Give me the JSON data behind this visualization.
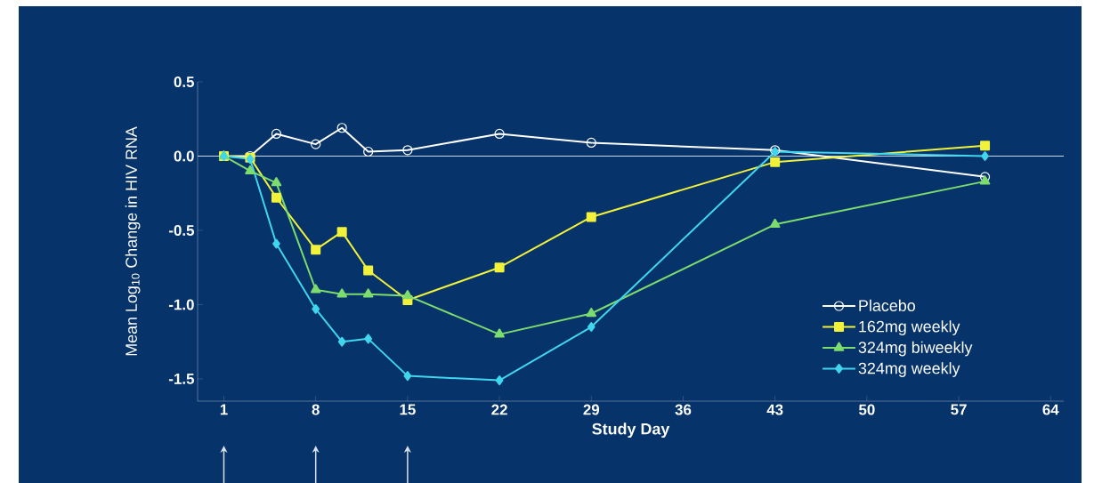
{
  "chart_data": {
    "type": "line",
    "xlabel": "Study Day",
    "ylabel": "Mean Log$_{10}$ Change in HIV RNA",
    "xlim": [
      -1,
      65
    ],
    "xticks": [
      1,
      8,
      15,
      22,
      29,
      36,
      43,
      50,
      57,
      64
    ],
    "ylim": [
      -1.65,
      0.5
    ],
    "yticks": [
      {
        "value": 0.5,
        "label": "0.5"
      },
      {
        "value": 0,
        "label": "0.0"
      },
      {
        "value": -0.5,
        "label": "-0.5"
      },
      {
        "value": -1,
        "label": "-1.0"
      },
      {
        "value": -1.5,
        "label": "-1.5"
      }
    ],
    "x": [
      1,
      3,
      5,
      8,
      10,
      12,
      15,
      22,
      29,
      43,
      59
    ],
    "series": [
      {
        "name": "Placebo",
        "color": "#ffffff",
        "marker": "circle",
        "values": [
          0,
          0,
          0.15,
          0.08,
          0.19,
          0.03,
          0.04,
          0.15,
          0.09,
          0.04,
          -0.14
        ]
      },
      {
        "name": "162mg weekly",
        "color": "#f2f23a",
        "marker": "square",
        "values": [
          0,
          -0.01,
          -0.28,
          -0.63,
          -0.51,
          -0.77,
          -0.97,
          -0.75,
          -0.41,
          -0.04,
          0.07
        ]
      },
      {
        "name": "324mg biweekly",
        "color": "#7ddc6e",
        "marker": "triangle",
        "values": [
          0,
          -0.1,
          -0.18,
          -0.9,
          -0.93,
          -0.93,
          -0.94,
          -1.2,
          -1.06,
          -0.46,
          -0.17
        ]
      },
      {
        "name": "324mg weekly",
        "color": "#3fd6ee",
        "marker": "diamond",
        "values": [
          0,
          -0.02,
          -0.59,
          -1.03,
          -1.25,
          -1.23,
          -1.48,
          -1.51,
          -1.15,
          0.03,
          0
        ]
      }
    ],
    "ref_lines": [
      {
        "axis": "y",
        "value": 0,
        "color": "#c8d8ee"
      }
    ],
    "legend": "bottom right",
    "grid": false
  }
}
